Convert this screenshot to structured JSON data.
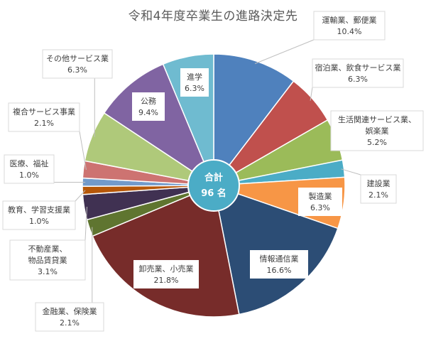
{
  "chart_data": {
    "type": "pie",
    "title": "令和4年度卒業生の進路決定先",
    "center_label": {
      "line1": "合計",
      "line2": "96 名"
    },
    "slices": [
      {
        "name": "運輸業、郵便業",
        "value": 10.4,
        "label": "10.4%",
        "color": "#4F81BD"
      },
      {
        "name": "宿泊業、飲食サービス業",
        "value": 6.3,
        "label": "6.3%",
        "color": "#C0504D"
      },
      {
        "name": "生活関連サービス業、娯楽業",
        "value": 5.2,
        "label": "5.2%",
        "color": "#9BBB59"
      },
      {
        "name": "建設業",
        "value": 2.1,
        "label": "2.1%",
        "color": "#4BACC6"
      },
      {
        "name": "製造業",
        "value": 6.3,
        "label": "6.3%",
        "color": "#F79646"
      },
      {
        "name": "情報通信業",
        "value": 16.6,
        "label": "16.6%",
        "color": "#2C4D75"
      },
      {
        "name": "卸売業、小売業",
        "value": 21.8,
        "label": "21.8%",
        "color": "#772C2A"
      },
      {
        "name": "金融業、保険業",
        "value": 2.1,
        "label": "2.1%",
        "color": "#5F7530"
      },
      {
        "name": "不動産業、物品賃貸業",
        "value": 3.1,
        "label": "3.1%",
        "color": "#403152"
      },
      {
        "name": "教育、学習支援業",
        "value": 1.0,
        "label": "1.0%",
        "color": "#B65708"
      },
      {
        "name": "医療、福祉",
        "value": 1.0,
        "label": "1.0%",
        "color": "#729ACA"
      },
      {
        "name": "複合サービス事業",
        "value": 2.1,
        "label": "2.1%",
        "color": "#CD7371"
      },
      {
        "name": "その他サービス業",
        "value": 6.3,
        "label": "6.3%",
        "color": "#AFC97A"
      },
      {
        "name": "公務",
        "value": 9.4,
        "label": "9.4%",
        "color": "#8064A2"
      },
      {
        "name": "進学",
        "value": 6.3,
        "label": "6.3%",
        "color": "#6FBBD0"
      }
    ]
  }
}
